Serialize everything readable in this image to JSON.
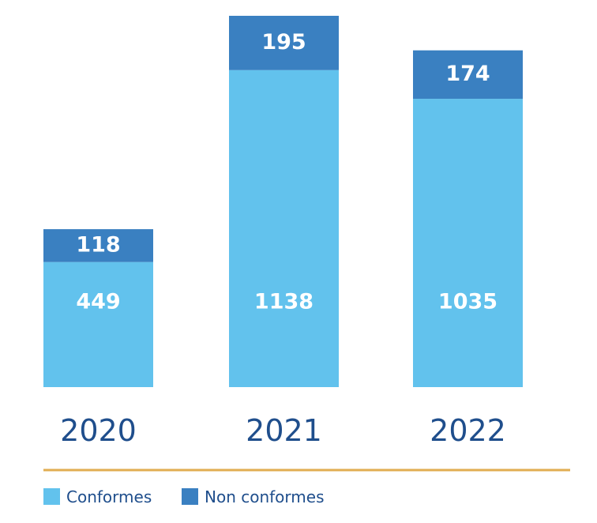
{
  "chart_data": {
    "type": "bar",
    "stacked": true,
    "categories": [
      "2020",
      "2021",
      "2022"
    ],
    "series": [
      {
        "name": "Conformes",
        "values": [
          449,
          1138,
          1035
        ],
        "color": "#62c2ed"
      },
      {
        "name": "Non conformes",
        "values": [
          118,
          195,
          174
        ],
        "color": "#3a80c1"
      }
    ],
    "axis_line_color": "#e1ad52",
    "category_label_color": "#1f4e8c",
    "value_label_color": "#ffffff",
    "legend_position": "bottom-left",
    "grid": false
  }
}
